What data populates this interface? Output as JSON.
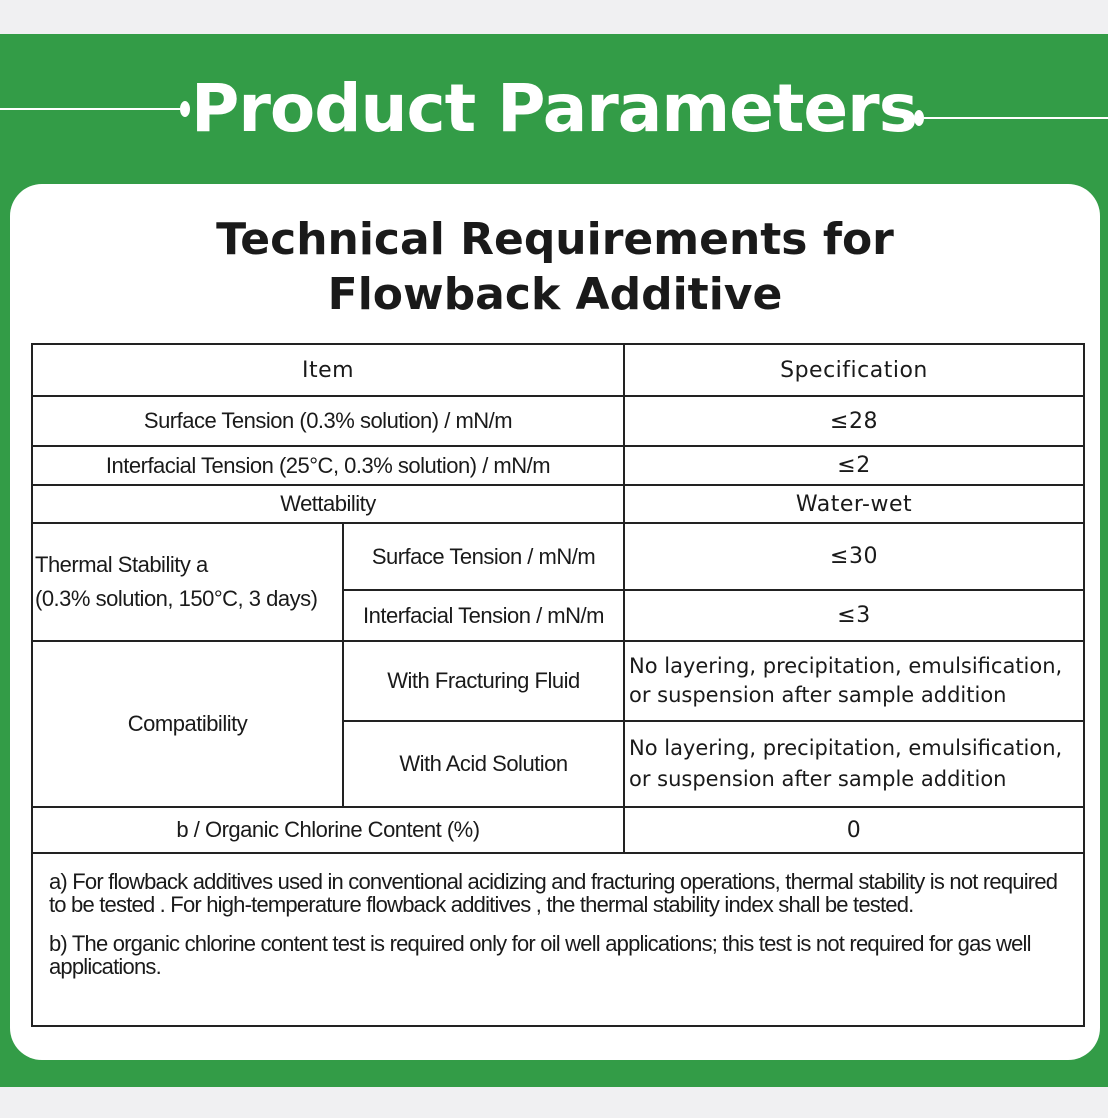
{
  "banner": {
    "title": "Product Parameters"
  },
  "card": {
    "title_line1": "Technical Requirements for",
    "title_line2": "Flowback Additive"
  },
  "colors": {
    "brand_green": "#339c47",
    "background": "#f0f0f2"
  },
  "table": {
    "headers": {
      "item": "Item",
      "specification": "Specification"
    },
    "rows": {
      "surface_tension": {
        "item": "Surface Tension (0.3% solution) / mN/m",
        "spec": "≤28"
      },
      "interfacial_tension": {
        "item": "Interfacial Tension (25°C, 0.3% solution) / mN/m",
        "spec": "≤2"
      },
      "wettability": {
        "item": "Wettability",
        "spec": "Water-wet"
      },
      "thermal_stability": {
        "item_line1": "Thermal Stability a",
        "item_line2": "(0.3% solution, 150°C, 3 days)",
        "sub": [
          {
            "item": "Surface Tension / mN/m",
            "spec": "≤30"
          },
          {
            "item": "Interfacial Tension / mN/m",
            "spec": "≤3"
          }
        ]
      },
      "compatibility": {
        "item": "Compatibility",
        "sub": [
          {
            "item": "With Fracturing Fluid",
            "spec_line1": "No layering, precipitation, emulsification,",
            "spec_line2": "or suspension after sample addition"
          },
          {
            "item": "With Acid Solution",
            "spec_line1": "No layering, precipitation, emulsification,",
            "spec_line2": "or suspension after sample addition"
          }
        ]
      },
      "organic_chlorine": {
        "item": "b / Organic Chlorine Content (%)",
        "spec": "0"
      }
    },
    "notes": {
      "a": "a) For flowback additives used in conventional acidizing and fracturing operations, thermal stability is not required to be tested . For high-temperature flowback  additives , the thermal stability index shall be tested.",
      "b": "b) The organic chlorine content test is required only for oil well applications; this test is not required for gas well applications."
    }
  }
}
